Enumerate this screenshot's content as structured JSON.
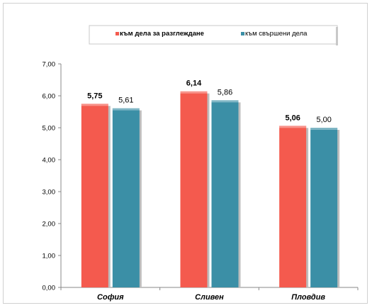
{
  "chart_data": {
    "type": "bar",
    "categories": [
      "София",
      "Сливен",
      "Пловдив"
    ],
    "series": [
      {
        "name": "към дела за разглеждане",
        "values": [
          5.75,
          6.14,
          5.06
        ],
        "value_labels": [
          "5,75",
          "6,14",
          "5,06"
        ],
        "color": "#f45a4e",
        "label_bold": true
      },
      {
        "name": "към свършени дела",
        "values": [
          5.61,
          5.86,
          5.0
        ],
        "value_labels": [
          "5,61",
          "5,86",
          "5,00"
        ],
        "color": "#3b8fa6",
        "label_bold": false
      }
    ],
    "ylim": [
      0,
      7
    ],
    "yticks": [
      0,
      1,
      2,
      3,
      4,
      5,
      6,
      7
    ],
    "ytick_labels": [
      "0,00",
      "1,00",
      "2,00",
      "3,00",
      "4,00",
      "5,00",
      "6,00",
      "7,00"
    ],
    "title": "",
    "xlabel": "",
    "ylabel": "",
    "grid": false,
    "legend_position": "top"
  }
}
